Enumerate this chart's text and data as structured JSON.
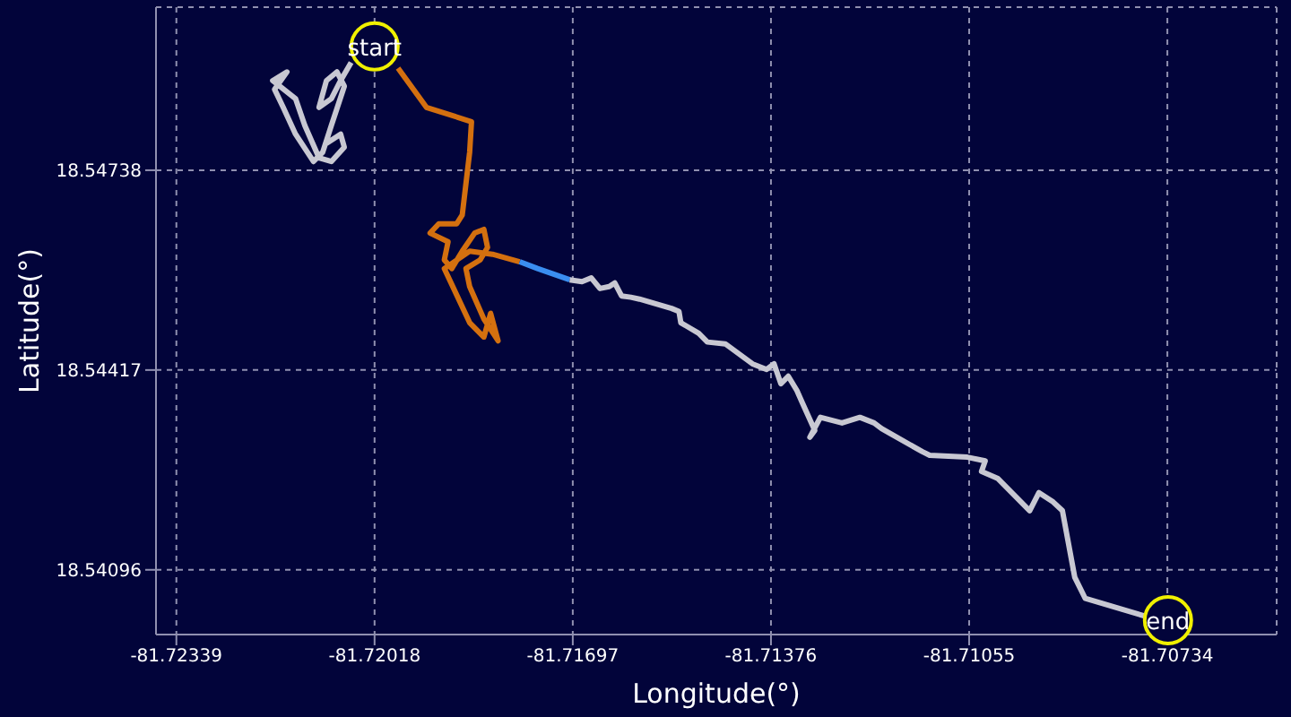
{
  "chart_data": {
    "type": "line",
    "xlabel": "Longitude(°)",
    "ylabel": "Latitude(°)",
    "xlim": [
      -81.72372,
      -81.70557
    ],
    "ylim": [
      18.53992,
      18.55
    ],
    "xticks": [
      -81.72339,
      -81.72018,
      -81.71697,
      -81.71376,
      -81.71055,
      -81.70734
    ],
    "yticks": [
      18.54096,
      18.54417,
      18.54738
    ],
    "grid": true,
    "marker": "none",
    "line_style": "solid",
    "series": [
      {
        "color": "#c8c8d2",
        "x": [
          -81.72056,
          -81.72073,
          -81.72088,
          -81.72108,
          -81.72096,
          -81.72079,
          -81.72067,
          -81.72088,
          -81.72102,
          -81.72117,
          -81.72146,
          -81.72166,
          -81.7218,
          -81.7216,
          -81.72183,
          -81.72146,
          -81.72131,
          -81.72108,
          -81.72088,
          -81.72067,
          -81.72073,
          -81.72096
        ],
        "values": [
          18.54911,
          18.54882,
          18.54853,
          18.54839,
          18.54882,
          18.54896,
          18.54873,
          18.5481,
          18.54767,
          18.54752,
          18.54796,
          18.54839,
          18.54868,
          18.54896,
          18.54882,
          18.54853,
          18.5481,
          18.54758,
          18.54752,
          18.54775,
          18.54796,
          18.54781
        ]
      },
      {
        "color": "#d4700f",
        "x": [
          -81.7198,
          -81.71934,
          -81.71861,
          -81.71864,
          -81.71876,
          -81.71885,
          -81.71914,
          -81.71928,
          -81.71899,
          -81.71905,
          -81.71893,
          -81.71876,
          -81.71856,
          -81.71841,
          -81.71835,
          -81.71847,
          -81.7187,
          -81.71864,
          -81.71841,
          -81.71818,
          -81.7183,
          -81.71841,
          -81.71864,
          -81.71905,
          -81.71864,
          -81.71827,
          -81.71783
        ],
        "values": [
          18.54902,
          18.54839,
          18.54816,
          18.54767,
          18.54666,
          18.54652,
          18.54652,
          18.54637,
          18.54623,
          18.54594,
          18.5458,
          18.54608,
          18.54637,
          18.54643,
          18.54614,
          18.54594,
          18.5458,
          18.54551,
          18.54499,
          18.54464,
          18.54508,
          18.5447,
          18.54493,
          18.5458,
          18.54608,
          18.54603,
          18.54591
        ]
      },
      {
        "color": "#3a8ef0",
        "x": [
          -81.71783,
          -81.71754,
          -81.71702
        ],
        "values": [
          18.54591,
          18.5458,
          18.54562
        ]
      },
      {
        "color": "#c8c8d2",
        "x": [
          -81.71702,
          -81.71682,
          -81.71667,
          -81.71653,
          -81.71638,
          -81.71629,
          -81.71618,
          -81.71603,
          -81.71589,
          -81.71537,
          -81.71525,
          -81.71522,
          -81.71493,
          -81.71479,
          -81.7145,
          -81.71406,
          -81.71383,
          -81.71371,
          -81.7136,
          -81.71348,
          -81.71334,
          -81.71325,
          -81.71305,
          -81.71313,
          -81.71296,
          -81.71261,
          -81.71232,
          -81.71209,
          -81.71197,
          -81.71183,
          -81.71131,
          -81.71119,
          -81.71058,
          -81.71029,
          -81.71035,
          -81.71009,
          -81.70957,
          -81.70942,
          -81.70919,
          -81.70904,
          -81.70884,
          -81.70867,
          -81.70768,
          -81.70733
        ],
        "values": [
          18.54562,
          18.54559,
          18.54565,
          18.54548,
          18.54551,
          18.54557,
          18.54536,
          18.54534,
          18.54531,
          18.54516,
          18.54511,
          18.54493,
          18.54476,
          18.54462,
          18.54459,
          18.54427,
          18.54418,
          18.54427,
          18.54395,
          18.54407,
          18.54384,
          18.54364,
          18.5432,
          18.54309,
          18.54341,
          18.54332,
          18.54341,
          18.54332,
          18.54323,
          18.54315,
          18.54286,
          18.5428,
          18.54277,
          18.54271,
          18.54254,
          18.54243,
          18.54191,
          18.5422,
          18.54205,
          18.54191,
          18.54084,
          18.5405,
          18.54021,
          18.54015
        ]
      }
    ],
    "annotations": [
      {
        "text": "start",
        "x": -81.72018,
        "y": 18.54937
      },
      {
        "text": "end",
        "x": -81.70733,
        "y": 18.54015
      }
    ]
  }
}
